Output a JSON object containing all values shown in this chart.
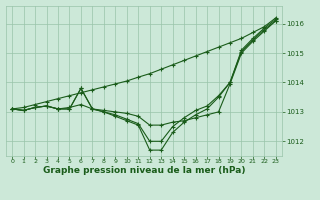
{
  "background_color": "#cce8d8",
  "grid_color": "#99c4aa",
  "line_color": "#1a5c1a",
  "xlabel": "Graphe pression niveau de la mer (hPa)",
  "xlabel_fontsize": 6.5,
  "ylim": [
    1011.5,
    1016.6
  ],
  "xlim": [
    -0.5,
    23.5
  ],
  "yticks": [
    1012,
    1013,
    1014,
    1015,
    1016
  ],
  "xticks": [
    0,
    1,
    2,
    3,
    4,
    5,
    6,
    7,
    8,
    9,
    10,
    11,
    12,
    13,
    14,
    15,
    16,
    17,
    18,
    19,
    20,
    21,
    22,
    23
  ],
  "line_straight": [
    1013.1,
    1013.15,
    1013.25,
    1013.35,
    1013.45,
    1013.55,
    1013.65,
    1013.75,
    1013.85,
    1013.95,
    1014.05,
    1014.18,
    1014.3,
    1014.45,
    1014.6,
    1014.75,
    1014.9,
    1015.05,
    1015.2,
    1015.35,
    1015.5,
    1015.7,
    1015.9,
    1016.2
  ],
  "line_dip1": [
    1013.1,
    1013.05,
    1013.15,
    1013.2,
    1013.1,
    1013.1,
    1013.8,
    1013.1,
    1013.0,
    1012.85,
    1012.7,
    1012.55,
    1011.7,
    1011.7,
    1012.3,
    1012.65,
    1012.9,
    1013.1,
    1013.5,
    1014.0,
    1015.1,
    1015.5,
    1015.85,
    1016.15
  ],
  "line_dip2": [
    1013.1,
    1013.05,
    1013.15,
    1013.2,
    1013.1,
    1013.1,
    1013.8,
    1013.1,
    1013.0,
    1012.9,
    1012.75,
    1012.6,
    1012.0,
    1012.0,
    1012.5,
    1012.8,
    1013.05,
    1013.2,
    1013.55,
    1014.0,
    1015.05,
    1015.45,
    1015.8,
    1016.1
  ],
  "line_flat": [
    1013.1,
    1013.05,
    1013.15,
    1013.2,
    1013.1,
    1013.15,
    1013.25,
    1013.1,
    1013.05,
    1013.0,
    1012.95,
    1012.85,
    1012.55,
    1012.55,
    1012.65,
    1012.7,
    1012.8,
    1012.9,
    1013.0,
    1013.95,
    1015.0,
    1015.4,
    1015.75,
    1016.1
  ]
}
